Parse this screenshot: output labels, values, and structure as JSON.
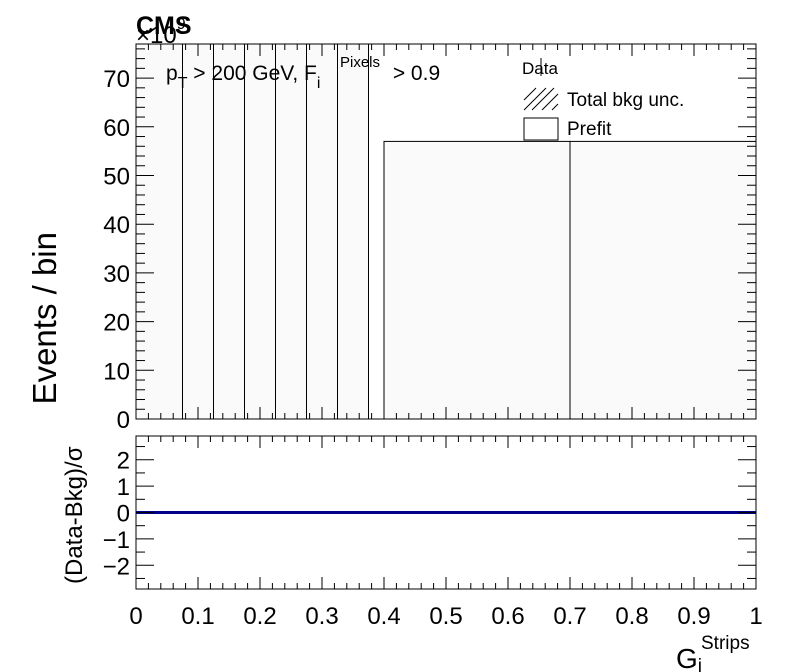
{
  "cms_label": "CMS",
  "exponent_label": "×10",
  "exponent_power": "9",
  "selection": {
    "pt": "p",
    "pt_sub": "T",
    "mid": " > 200 GeV, F",
    "f_sub": "i",
    "f_sup": "Pixels",
    "cut": " > 0.9"
  },
  "legend": {
    "data": "Data",
    "unc": "Total bkg unc.",
    "prefit": "Prefit"
  },
  "colors": {
    "axis": "#000000",
    "ratio_line": "#00008b",
    "prefit_fill": "#fafafa"
  },
  "chart_data": [
    {
      "type": "bar",
      "panel": "main",
      "ylabel": "Events / bin",
      "xlim": [
        0,
        1
      ],
      "ylim": [
        0,
        77
      ],
      "y_ticks": [
        0,
        10,
        20,
        30,
        40,
        50,
        60,
        70
      ],
      "bin_edges": [
        0,
        0.075,
        0.125,
        0.175,
        0.225,
        0.275,
        0.325,
        0.375,
        0.4,
        0.7,
        1.0
      ],
      "series": [
        {
          "name": "Prefit",
          "values": [
            77,
            77,
            77,
            77,
            77,
            77,
            77,
            0,
            57,
            57
          ]
        }
      ]
    },
    {
      "type": "line",
      "panel": "ratio",
      "ylabel": "(Data-Bkg)/σ",
      "xlabel": "G",
      "xlabel_sub": "i",
      "xlabel_sup": "Strips",
      "xlim": [
        0,
        1
      ],
      "ylim": [
        -2.9,
        2.9
      ],
      "y_ticks": [
        -2,
        -1,
        0,
        1,
        2
      ],
      "x_ticks": [
        0,
        0.1,
        0.2,
        0.3,
        0.4,
        0.5,
        0.6,
        0.7,
        0.8,
        0.9,
        1
      ],
      "x_tick_labels": [
        "0",
        "0.1",
        "0.2",
        "0.3",
        "0.4",
        "0.5",
        "0.6",
        "0.7",
        "0.8",
        "0.9",
        "1"
      ],
      "y_tick_labels": [
        "−2",
        "−1",
        "0",
        "1",
        "2"
      ],
      "x": [
        0,
        1
      ],
      "y": [
        0,
        0
      ]
    }
  ]
}
